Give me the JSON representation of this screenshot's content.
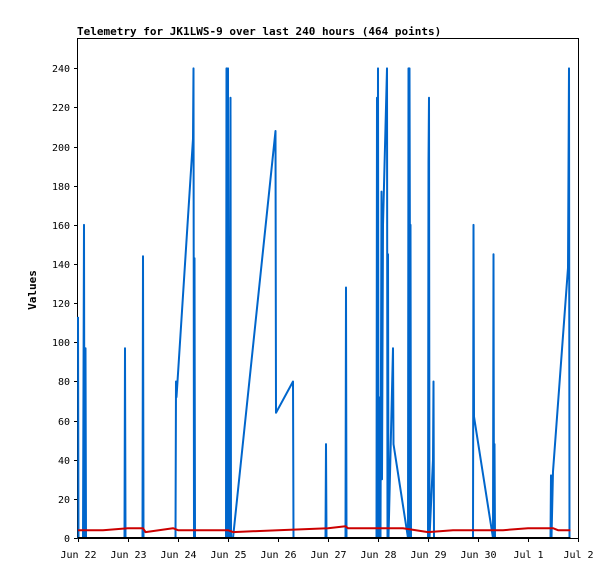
{
  "chart_data": {
    "type": "line",
    "title": "Telemetry for JK1LWS-9 over last 240 hours (464 points)",
    "xlabel": "",
    "ylabel": "Values",
    "x_ticks": [
      "Jun 22",
      "Jun 23",
      "Jun 24",
      "Jun 25",
      "Jun 26",
      "Jun 27",
      "Jun 28",
      "Jun 29",
      "Jun 30",
      "Jul 1",
      "Jul 2"
    ],
    "xlim": [
      0,
      10
    ],
    "ylim": [
      0,
      255
    ],
    "y_ticks": [
      0,
      20,
      40,
      60,
      80,
      100,
      120,
      140,
      160,
      180,
      200,
      220,
      240
    ],
    "grid": false,
    "legend": "none",
    "colors": {
      "series1": "#0066cc",
      "series2": "#cc0000",
      "series3": "#000000",
      "frame": "#000000"
    },
    "series": [
      {
        "values": [
          [
            0.0,
            113
          ],
          [
            0.01,
            0
          ],
          [
            0.1,
            0
          ],
          [
            0.12,
            160
          ],
          [
            0.13,
            0
          ],
          [
            0.15,
            97
          ],
          [
            0.16,
            0
          ],
          [
            0.93,
            0
          ],
          [
            0.94,
            97
          ],
          [
            0.95,
            0
          ],
          [
            1.29,
            0
          ],
          [
            1.3,
            144
          ],
          [
            1.31,
            0
          ],
          [
            1.95,
            0
          ],
          [
            1.96,
            80
          ],
          [
            1.97,
            72
          ],
          [
            2.3,
            204
          ],
          [
            2.31,
            240
          ],
          [
            2.32,
            0
          ],
          [
            2.33,
            143
          ],
          [
            2.34,
            0
          ],
          [
            2.96,
            0
          ],
          [
            2.97,
            240
          ],
          [
            2.98,
            0
          ],
          [
            3.0,
            240
          ],
          [
            3.01,
            0
          ],
          [
            3.02,
            58
          ],
          [
            3.03,
            0
          ],
          [
            3.05,
            225
          ],
          [
            3.06,
            0
          ],
          [
            3.1,
            0
          ],
          [
            3.95,
            208
          ],
          [
            3.96,
            64
          ],
          [
            4.3,
            80
          ],
          [
            4.31,
            0
          ],
          [
            4.95,
            0
          ],
          [
            4.96,
            48
          ],
          [
            4.97,
            0
          ],
          [
            5.35,
            0
          ],
          [
            5.36,
            128
          ],
          [
            5.37,
            0
          ],
          [
            5.97,
            0
          ],
          [
            5.98,
            225
          ],
          [
            5.99,
            0
          ],
          [
            6.0,
            240
          ],
          [
            6.01,
            0
          ],
          [
            6.02,
            72
          ],
          [
            6.05,
            0
          ],
          [
            6.07,
            177
          ],
          [
            6.08,
            30
          ],
          [
            6.1,
            160
          ],
          [
            6.18,
            240
          ],
          [
            6.19,
            0
          ],
          [
            6.2,
            145
          ],
          [
            6.21,
            0
          ],
          [
            6.3,
            97
          ],
          [
            6.31,
            48
          ],
          [
            6.6,
            0
          ],
          [
            6.61,
            240
          ],
          [
            6.62,
            0
          ],
          [
            6.63,
            240
          ],
          [
            6.64,
            128
          ],
          [
            6.65,
            160
          ],
          [
            6.66,
            0
          ],
          [
            7.0,
            0
          ],
          [
            7.01,
            192
          ],
          [
            7.02,
            225
          ],
          [
            7.03,
            0
          ],
          [
            7.1,
            40
          ],
          [
            7.11,
            80
          ],
          [
            7.12,
            0
          ],
          [
            7.9,
            0
          ],
          [
            7.91,
            160
          ],
          [
            7.92,
            62
          ],
          [
            8.3,
            0
          ],
          [
            8.31,
            145
          ],
          [
            8.32,
            0
          ],
          [
            8.33,
            48
          ],
          [
            8.34,
            0
          ],
          [
            9.45,
            0
          ],
          [
            9.46,
            32
          ],
          [
            9.47,
            0
          ],
          [
            9.5,
            34
          ],
          [
            9.8,
            138
          ],
          [
            9.82,
            240
          ],
          [
            9.83,
            0
          ]
        ]
      },
      {
        "values": [
          [
            0.0,
            4
          ],
          [
            0.5,
            4
          ],
          [
            1.0,
            5
          ],
          [
            1.3,
            5
          ],
          [
            1.35,
            3
          ],
          [
            1.9,
            5
          ],
          [
            2.0,
            4
          ],
          [
            3.0,
            4
          ],
          [
            3.1,
            3
          ],
          [
            4.0,
            4
          ],
          [
            5.0,
            5
          ],
          [
            5.35,
            6
          ],
          [
            5.4,
            5
          ],
          [
            6.0,
            5
          ],
          [
            6.5,
            5
          ],
          [
            7.0,
            3
          ],
          [
            7.5,
            4
          ],
          [
            8.5,
            4
          ],
          [
            9.0,
            5
          ],
          [
            9.2,
            5
          ],
          [
            9.5,
            5
          ],
          [
            9.6,
            4
          ],
          [
            9.85,
            4
          ]
        ]
      },
      {
        "values": [
          [
            0.0,
            0
          ],
          [
            9.85,
            0
          ]
        ]
      }
    ]
  }
}
